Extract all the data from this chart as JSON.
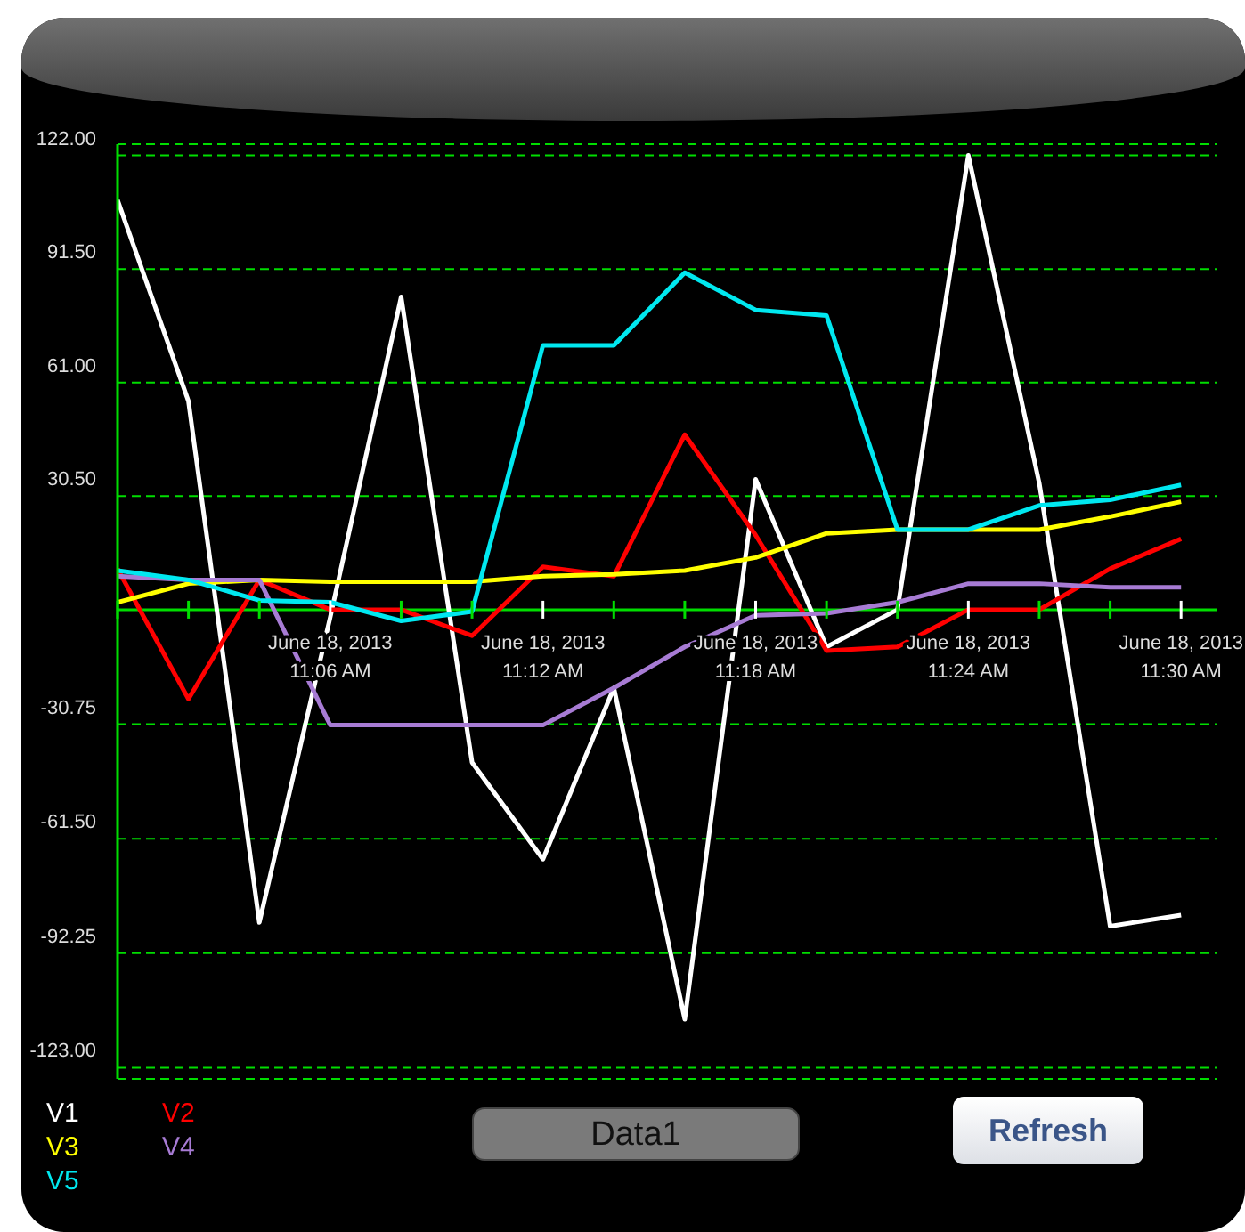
{
  "chart_data": {
    "type": "line",
    "x": [
      "2013-06-18T11:00",
      "2013-06-18T11:02",
      "2013-06-18T11:04",
      "2013-06-18T11:06",
      "2013-06-18T11:08",
      "2013-06-18T11:10",
      "2013-06-18T11:12",
      "2013-06-18T11:14",
      "2013-06-18T11:16",
      "2013-06-18T11:18",
      "2013-06-18T11:20",
      "2013-06-18T11:22",
      "2013-06-18T11:24",
      "2013-06-18T11:26",
      "2013-06-18T11:28",
      "2013-06-18T11:30"
    ],
    "series": [
      {
        "name": "V1",
        "color": "#ffffff",
        "values": [
          110,
          56,
          -84,
          -2,
          84,
          -41,
          -67,
          -21,
          -110,
          35,
          -10,
          0,
          122,
          34,
          -85,
          -82
        ]
      },
      {
        "name": "V2",
        "color": "#ff0000",
        "values": [
          11,
          -24,
          8,
          0,
          0,
          -7,
          11.5,
          9,
          47,
          20,
          -11,
          -10,
          0,
          0,
          11,
          19
        ]
      },
      {
        "name": "V3",
        "color": "#ffff00",
        "values": [
          2,
          7,
          8,
          7.5,
          7.5,
          7.5,
          9,
          9.5,
          10.5,
          14,
          20.5,
          21.5,
          21.5,
          21.5,
          25,
          29
        ]
      },
      {
        "name": "V4",
        "color": "#a77bd4",
        "values": [
          9,
          8,
          8,
          -31,
          -31,
          -31,
          -31,
          -21,
          -10,
          -1.5,
          -1,
          2,
          7,
          7,
          6,
          6
        ]
      },
      {
        "name": "V5",
        "color": "#00e8f0",
        "values": [
          10.5,
          8,
          2.5,
          2,
          -3,
          -0.5,
          71,
          71,
          90.5,
          80.5,
          79,
          21.5,
          21.5,
          28,
          29.5,
          33.5
        ]
      }
    ],
    "xlim": [
      "2013-06-18T11:00",
      "2013-06-18T11:31"
    ],
    "xticks": [
      {
        "value": "2013-06-18T11:00",
        "label": null
      },
      {
        "value": "2013-06-18T11:02",
        "label": null
      },
      {
        "value": "2013-06-18T11:04",
        "label": null
      },
      {
        "value": "2013-06-18T11:06",
        "label": "June 18, 2013\n11:06 AM"
      },
      {
        "value": "2013-06-18T11:08",
        "label": null
      },
      {
        "value": "2013-06-18T11:10",
        "label": null
      },
      {
        "value": "2013-06-18T11:12",
        "label": "June 18, 2013\n11:12 AM"
      },
      {
        "value": "2013-06-18T11:14",
        "label": null
      },
      {
        "value": "2013-06-18T11:16",
        "label": null
      },
      {
        "value": "2013-06-18T11:18",
        "label": "June 18, 2013\n11:18 AM"
      },
      {
        "value": "2013-06-18T11:20",
        "label": null
      },
      {
        "value": "2013-06-18T11:22",
        "label": null
      },
      {
        "value": "2013-06-18T11:24",
        "label": "June 18, 2013\n11:24 AM"
      },
      {
        "value": "2013-06-18T11:26",
        "label": null
      },
      {
        "value": "2013-06-18T11:28",
        "label": null
      },
      {
        "value": "2013-06-18T11:30",
        "label": "June 18, 2013\n11:30 AM"
      }
    ],
    "ylim": [
      -126,
      125
    ],
    "yticks": [
      {
        "value": 122,
        "label": "122.00"
      },
      {
        "value": 91.5,
        "label": "91.50"
      },
      {
        "value": 61,
        "label": "61.00"
      },
      {
        "value": 30.5,
        "label": "30.50"
      },
      {
        "value": 0,
        "label": null
      },
      {
        "value": -30.75,
        "label": "-30.75"
      },
      {
        "value": -61.5,
        "label": "-61.50"
      },
      {
        "value": -92.25,
        "label": "-92.25"
      },
      {
        "value": -123,
        "label": "-123.00"
      }
    ],
    "grid": "y",
    "legend": "bottom left",
    "marker": "none",
    "line_style": "solid",
    "annotations": [
      "Data1",
      "Refresh"
    ]
  }
}
